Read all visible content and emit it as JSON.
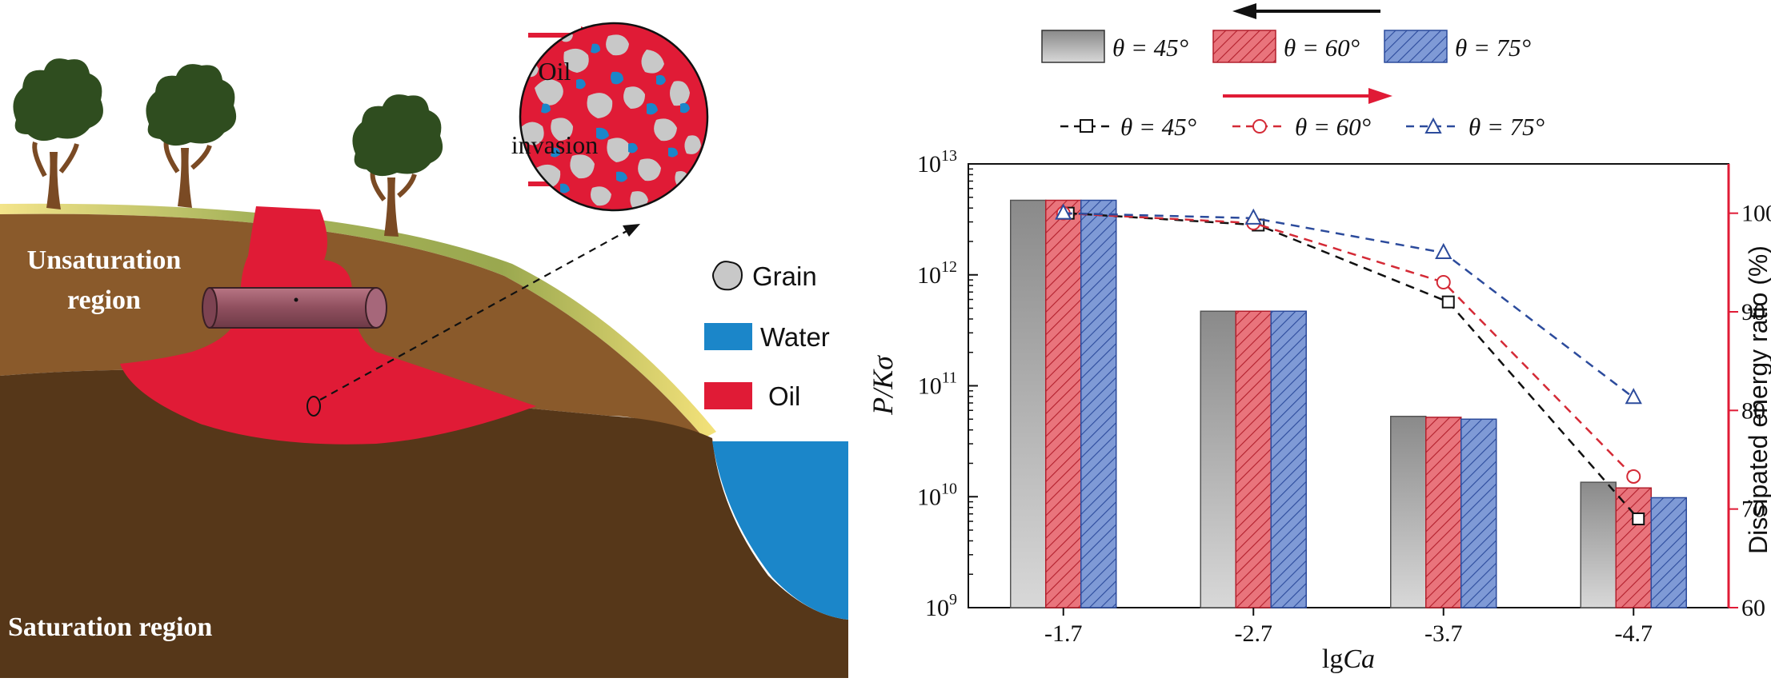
{
  "illustration": {
    "unsaturation_label_line1": "Unsaturation",
    "unsaturation_label_line2": "region",
    "saturation_label": "Saturation region",
    "oil_invasion_line1": "Oil",
    "oil_invasion_line2": "invasion",
    "legend": [
      {
        "label": "Grain",
        "color": "#c8c8c8",
        "icon": "grain-icon"
      },
      {
        "label": "Water",
        "color": "#1b86c9",
        "icon": "water-swatch-icon"
      },
      {
        "label": "Oil",
        "color": "#e01b36",
        "icon": "oil-swatch-icon"
      }
    ],
    "colors": {
      "soil_upper": "#8a5a2b",
      "soil_lower": "#563719",
      "oil": "#e01b36",
      "water": "#1b86c9",
      "grass": "#a9b45a",
      "tree_canopy": "#2f4d1f",
      "tree_trunk": "#7a4a24",
      "pipe": "#9c5b6b"
    }
  },
  "chart_data": {
    "type": "bar",
    "categories": [
      "-1.7",
      "-2.7",
      "-3.7",
      "-4.7"
    ],
    "xlabel": "lg",
    "xlabel_italic": "Ca",
    "ylabel": "P/Kσ",
    "y2label": "Dissipated energy ratio (%)",
    "yscale": "log",
    "ylim": [
      1000000000.0,
      10000000000000.0
    ],
    "y_ticks": [
      {
        "base": "10",
        "exp": "9",
        "value": 1000000000.0
      },
      {
        "base": "10",
        "exp": "10",
        "value": 10000000000.0
      },
      {
        "base": "10",
        "exp": "11",
        "value": 100000000000.0
      },
      {
        "base": "10",
        "exp": "12",
        "value": 1000000000000.0
      },
      {
        "base": "10",
        "exp": "13",
        "value": 10000000000000.0
      }
    ],
    "y2lim": [
      60,
      105
    ],
    "y2_ticks": [
      "60",
      "70",
      "80",
      "90",
      "100"
    ],
    "bar_series": [
      {
        "name": "θ = 45°",
        "color": "#9a9a9a",
        "values": [
          4700000000000.0,
          470000000000.0,
          53000000000.0,
          13500000000.0
        ]
      },
      {
        "name": "θ = 60°",
        "color": "#e2434f",
        "values": [
          4700000000000.0,
          470000000000.0,
          52000000000.0,
          12000000000.0
        ]
      },
      {
        "name": "θ = 75°",
        "color": "#4c72c0",
        "values": [
          4700000000000.0,
          470000000000.0,
          50000000000.0,
          9800000000.0
        ]
      }
    ],
    "line_series": [
      {
        "name": "θ = 45°",
        "color": "#111111",
        "marker": "square",
        "values": [
          100,
          98.8,
          91,
          69
        ]
      },
      {
        "name": "θ = 60°",
        "color": "#d42a36",
        "marker": "circle",
        "values": [
          100,
          99,
          93,
          73.3
        ]
      },
      {
        "name": "θ = 75°",
        "color": "#2c4b9c",
        "marker": "triangle",
        "values": [
          100,
          99.5,
          96,
          81.3
        ]
      }
    ],
    "arrows": [
      {
        "direction": "left",
        "color": "#111111",
        "applies_to": "bars"
      },
      {
        "direction": "right",
        "color": "#e01b36",
        "applies_to": "lines"
      }
    ]
  }
}
